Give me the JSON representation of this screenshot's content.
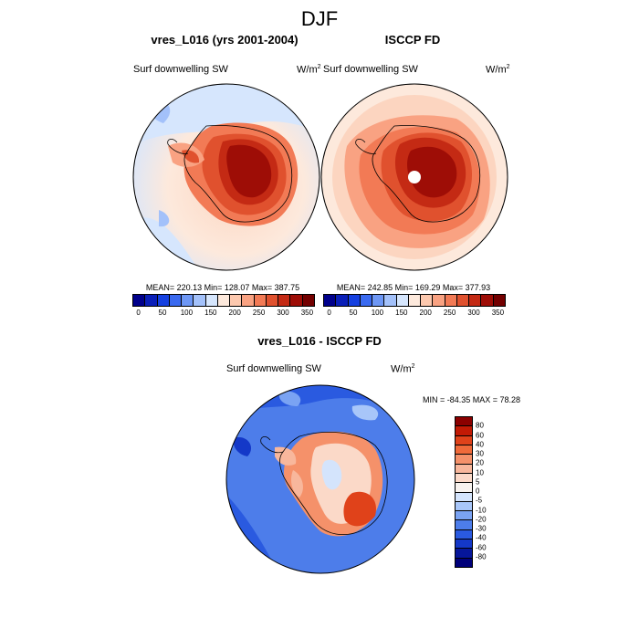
{
  "page_title": "DJF",
  "panels": [
    {
      "title": "vres_L016 (yrs 2001-2004)",
      "left_label": "Surf downwelling SW",
      "units": "W/m",
      "units_exp": "2",
      "stats": "MEAN= 220.13  Min= 128.07  Max= 387.75"
    },
    {
      "title": "ISCCP FD",
      "left_label": "Surf downwelling SW",
      "units": "W/m",
      "units_exp": "2",
      "stats": "MEAN= 242.85  Min= 169.29  Max= 377.93"
    },
    {
      "title": "vres_L016 - ISCCP FD",
      "left_label": "Surf downwelling SW",
      "units": "W/m",
      "units_exp": "2",
      "stats": "MIN = -84.35 MAX =  78.28"
    }
  ],
  "colorbar_abs": {
    "colors": [
      "#00008b",
      "#0a1fb8",
      "#1540e0",
      "#3a6af0",
      "#6d97f5",
      "#a3c1fa",
      "#d6e6fd",
      "#fde9dc",
      "#fcc8ae",
      "#f9a282",
      "#f27a55",
      "#e0512e",
      "#c42a14",
      "#9e0d06",
      "#730000"
    ],
    "labels": [
      "0",
      "50",
      "100",
      "150",
      "200",
      "250",
      "300",
      "350"
    ]
  },
  "colorbar_diff": {
    "colors": [
      "#8b0000",
      "#c21a05",
      "#e0421a",
      "#f06a3a",
      "#f5916a",
      "#f8b79c",
      "#fbd9c8",
      "#f7f2ee",
      "#d4e4fc",
      "#a8c6f9",
      "#7aa3f3",
      "#4d7dea",
      "#2a5ae0",
      "#1438c8",
      "#06169a",
      "#00007a"
    ],
    "labels": [
      "80",
      "60",
      "40",
      "30",
      "20",
      "10",
      "5",
      "0",
      "-5",
      "-10",
      "-20",
      "-30",
      "-40",
      "-60",
      "-80"
    ]
  }
}
